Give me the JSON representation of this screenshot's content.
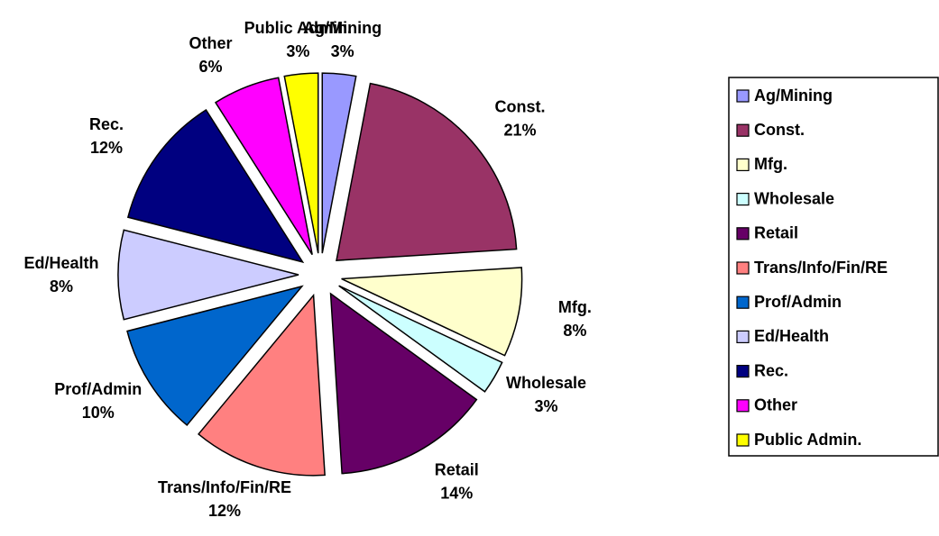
{
  "chart_data": {
    "type": "pie",
    "categories": [
      "Ag/Mining",
      "Const.",
      "Mfg.",
      "Wholesale",
      "Retail",
      "Trans/Info/Fin/RE",
      "Prof/Admin",
      "Ed/Health",
      "Rec.",
      "Other",
      "Public Admin."
    ],
    "values": [
      3,
      21,
      8,
      3,
      14,
      12,
      10,
      8,
      12,
      6,
      3
    ],
    "value_labels": [
      "3%",
      "21%",
      "8%",
      "3%",
      "14%",
      "12%",
      "10%",
      "8%",
      "12%",
      "6%",
      "3%"
    ],
    "colors": [
      "#9999ff",
      "#993366",
      "#ffffcc",
      "#ccffff",
      "#660066",
      "#ff8080",
      "#0066cc",
      "#ccccff",
      "#000080",
      "#ff00ff",
      "#ffff00"
    ],
    "legend": "right"
  }
}
